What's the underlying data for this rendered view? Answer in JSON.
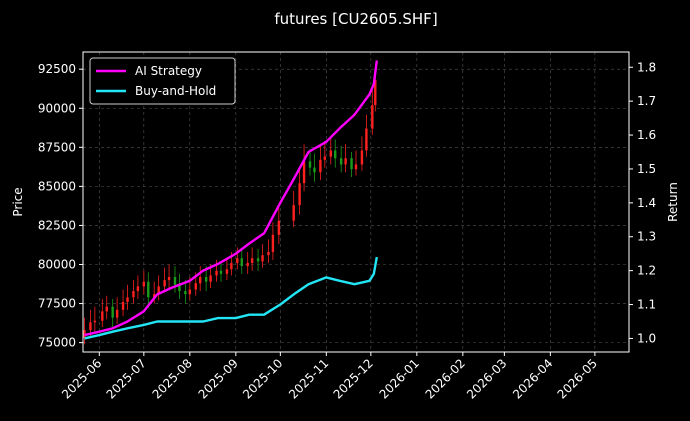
{
  "chart_data": {
    "type": "line",
    "title": "futures [CU2605.SHF]",
    "y_left_label": "Price",
    "y_right_label": "Return",
    "x_range": [
      "2025-05-21",
      "2026-05-24"
    ],
    "y_left_range": [
      74400,
      93600
    ],
    "y_right_range": [
      0.96,
      1.845
    ],
    "x_ticks": [
      "2025-06",
      "2025-07",
      "2025-08",
      "2025-09",
      "2025-10",
      "2025-11",
      "2025-12",
      "2026-01",
      "2026-02",
      "2026-03",
      "2026-04",
      "2026-05"
    ],
    "y_left_ticks": [
      "75000",
      "77500",
      "80000",
      "82500",
      "85000",
      "87500",
      "90000",
      "92500"
    ],
    "y_right_ticks": [
      "1.0",
      "1.1",
      "1.2",
      "1.3",
      "1.4",
      "1.5",
      "1.6",
      "1.7",
      "1.8"
    ],
    "grid": true,
    "legend_position": "top-left",
    "candles_price": {
      "dates": [
        "2025-05-22",
        "2025-05-26",
        "2025-05-29",
        "2025-06-03",
        "2025-06-06",
        "2025-06-10",
        "2025-06-13",
        "2025-06-17",
        "2025-06-20",
        "2025-06-24",
        "2025-06-27",
        "2025-07-01",
        "2025-07-04",
        "2025-07-08",
        "2025-07-11",
        "2025-07-15",
        "2025-07-18",
        "2025-07-22",
        "2025-07-25",
        "2025-07-29",
        "2025-08-01",
        "2025-08-05",
        "2025-08-08",
        "2025-08-12",
        "2025-08-15",
        "2025-08-19",
        "2025-08-22",
        "2025-08-26",
        "2025-08-29",
        "2025-09-02",
        "2025-09-05",
        "2025-09-09",
        "2025-09-12",
        "2025-09-16",
        "2025-09-19",
        "2025-09-23",
        "2025-09-26",
        "2025-09-30",
        "2025-10-10",
        "2025-10-14",
        "2025-10-17",
        "2025-10-21",
        "2025-10-24",
        "2025-10-28",
        "2025-10-31",
        "2025-11-04",
        "2025-11-07",
        "2025-11-11",
        "2025-11-14",
        "2025-11-18",
        "2025-11-21",
        "2025-11-25",
        "2025-11-28",
        "2025-12-02",
        "2025-12-04"
      ],
      "open": [
        75300,
        75800,
        76300,
        76400,
        77000,
        77300,
        76600,
        77100,
        77600,
        77900,
        78300,
        78600,
        78900,
        77900,
        78100,
        78600,
        79000,
        79200,
        78700,
        78300,
        78100,
        78400,
        78800,
        79200,
        78900,
        79300,
        79600,
        79400,
        79700,
        80100,
        80400,
        79900,
        80100,
        80400,
        80200,
        80600,
        80800,
        81900,
        82800,
        83800,
        85200,
        86600,
        86200,
        85900,
        86700,
        86900,
        87300,
        86800,
        86400,
        86800,
        86100,
        86400,
        87300,
        88700,
        90200
      ],
      "close": [
        75800,
        76300,
        76400,
        77000,
        77300,
        76600,
        77100,
        77600,
        77900,
        78300,
        78600,
        78900,
        77900,
        78100,
        78600,
        79000,
        79200,
        78700,
        78300,
        78100,
        78400,
        78800,
        79200,
        78900,
        79300,
        79600,
        79400,
        79700,
        80100,
        80400,
        79900,
        80100,
        80400,
        80200,
        80600,
        80800,
        81900,
        82800,
        83800,
        85200,
        86600,
        86200,
        85900,
        86700,
        86900,
        87300,
        86800,
        86400,
        86800,
        86100,
        86400,
        87300,
        88700,
        90200,
        91800
      ],
      "high": [
        76600,
        77100,
        77300,
        77800,
        78000,
        77800,
        77900,
        78400,
        78700,
        79000,
        79300,
        79600,
        79500,
        78900,
        79300,
        79800,
        80000,
        79900,
        79400,
        79000,
        79200,
        79500,
        79900,
        79900,
        80000,
        80300,
        80200,
        80400,
        80800,
        81100,
        80900,
        80800,
        81100,
        81000,
        81300,
        81600,
        82700,
        83600,
        84700,
        86100,
        87700,
        87400,
        87100,
        87600,
        87900,
        88200,
        88000,
        87600,
        87700,
        87200,
        87300,
        88200,
        89600,
        91200,
        92600
      ],
      "low": [
        74900,
        75300,
        75700,
        76000,
        76500,
        76000,
        76200,
        76700,
        77100,
        77500,
        77800,
        78100,
        77200,
        77500,
        77700,
        78200,
        78500,
        78200,
        77800,
        77500,
        77700,
        78000,
        78300,
        78300,
        78500,
        78900,
        78900,
        79000,
        79300,
        79700,
        79400,
        79400,
        79600,
        79600,
        79800,
        80100,
        80300,
        81300,
        82400,
        83200,
        84700,
        85700,
        85300,
        85400,
        86200,
        86400,
        86200,
        85900,
        85900,
        85600,
        85700,
        86000,
        86900,
        88300,
        89800
      ]
    },
    "series": [
      {
        "name": "AI Strategy",
        "color": "#ff00ff",
        "axis": "right",
        "x": [
          "2025-05-22",
          "2025-06-01",
          "2025-06-10",
          "2025-06-20",
          "2025-07-01",
          "2025-07-10",
          "2025-07-20",
          "2025-08-01",
          "2025-08-10",
          "2025-08-20",
          "2025-09-01",
          "2025-09-10",
          "2025-09-20",
          "2025-10-01",
          "2025-10-10",
          "2025-10-20",
          "2025-11-01",
          "2025-11-10",
          "2025-11-20",
          "2025-11-30",
          "2025-12-03",
          "2025-12-05"
        ],
        "y": [
          1.01,
          1.02,
          1.03,
          1.05,
          1.08,
          1.13,
          1.15,
          1.17,
          1.2,
          1.22,
          1.25,
          1.28,
          1.31,
          1.4,
          1.47,
          1.55,
          1.58,
          1.62,
          1.66,
          1.72,
          1.75,
          1.82
        ]
      },
      {
        "name": "Buy-and-Hold",
        "color": "#22e5f5",
        "axis": "right",
        "x": [
          "2025-05-22",
          "2025-06-01",
          "2025-06-10",
          "2025-06-20",
          "2025-07-01",
          "2025-07-10",
          "2025-07-20",
          "2025-08-01",
          "2025-08-10",
          "2025-08-20",
          "2025-09-01",
          "2025-09-10",
          "2025-09-20",
          "2025-10-01",
          "2025-10-10",
          "2025-10-20",
          "2025-11-01",
          "2025-11-10",
          "2025-11-20",
          "2025-11-30",
          "2025-12-03",
          "2025-12-05"
        ],
        "y": [
          1.0,
          1.01,
          1.02,
          1.03,
          1.04,
          1.05,
          1.05,
          1.05,
          1.05,
          1.06,
          1.06,
          1.07,
          1.07,
          1.1,
          1.13,
          1.16,
          1.18,
          1.17,
          1.16,
          1.17,
          1.19,
          1.24
        ]
      }
    ]
  }
}
